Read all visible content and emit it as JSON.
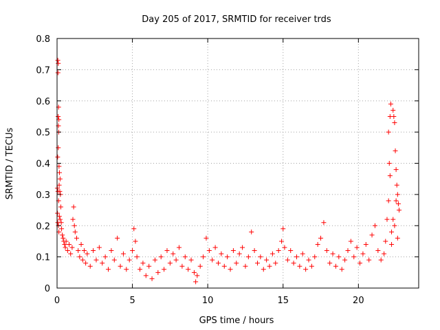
{
  "chart_data": {
    "type": "scatter",
    "title": "Day 205 of 2017, SRMTID for receiver trds",
    "xlabel": "GPS time / hours",
    "ylabel": "SRMTID / TECUs",
    "xlim": [
      0,
      24
    ],
    "ylim": [
      0,
      0.8
    ],
    "xticks": [
      0,
      5,
      10,
      15,
      20
    ],
    "xtick_labels": [
      "0",
      "5",
      "10",
      "15",
      "20"
    ],
    "yticks": [
      0,
      0.1,
      0.2,
      0.3,
      0.4,
      0.5,
      0.6,
      0.7,
      0.8
    ],
    "ytick_labels": [
      "0",
      "0.1",
      "0.2",
      "0.3",
      "0.4",
      "0.5",
      "0.6",
      "0.7",
      "0.8"
    ],
    "grid": true,
    "marker": "+",
    "color": "#ff0000",
    "series": [
      {
        "name": "SRMTID",
        "points": [
          [
            0.05,
            0.73
          ],
          [
            0.08,
            0.72
          ],
          [
            0.06,
            0.69
          ],
          [
            0.1,
            0.58
          ],
          [
            0.07,
            0.55
          ],
          [
            0.12,
            0.54
          ],
          [
            0.09,
            0.52
          ],
          [
            0.11,
            0.5
          ],
          [
            0.08,
            0.45
          ],
          [
            0.04,
            0.42
          ],
          [
            0.13,
            0.39
          ],
          [
            0.16,
            0.37
          ],
          [
            0.2,
            0.35
          ],
          [
            0.14,
            0.33
          ],
          [
            0.02,
            0.32
          ],
          [
            0.06,
            0.31
          ],
          [
            0.18,
            0.31
          ],
          [
            0.22,
            0.3
          ],
          [
            0.1,
            0.28
          ],
          [
            0.25,
            0.26
          ],
          [
            0.03,
            0.24
          ],
          [
            0.15,
            0.23
          ],
          [
            0.2,
            0.22
          ],
          [
            0.28,
            0.21
          ],
          [
            0.05,
            0.21
          ],
          [
            0.09,
            0.2
          ],
          [
            0.3,
            0.19
          ],
          [
            0.12,
            0.18
          ],
          [
            0.35,
            0.17
          ],
          [
            0.4,
            0.16
          ],
          [
            0.45,
            0.15
          ],
          [
            0.5,
            0.14
          ],
          [
            0.55,
            0.13
          ],
          [
            0.6,
            0.15
          ],
          [
            0.7,
            0.12
          ],
          [
            0.8,
            0.14
          ],
          [
            0.9,
            0.11
          ],
          [
            1.0,
            0.13
          ],
          [
            1.1,
            0.26
          ],
          [
            1.05,
            0.22
          ],
          [
            1.15,
            0.2
          ],
          [
            1.2,
            0.18
          ],
          [
            1.3,
            0.16
          ],
          [
            1.4,
            0.12
          ],
          [
            1.5,
            0.1
          ],
          [
            1.6,
            0.14
          ],
          [
            1.7,
            0.09
          ],
          [
            1.8,
            0.12
          ],
          [
            1.9,
            0.08
          ],
          [
            2.0,
            0.11
          ],
          [
            2.2,
            0.07
          ],
          [
            2.4,
            0.12
          ],
          [
            2.6,
            0.09
          ],
          [
            2.8,
            0.13
          ],
          [
            3.0,
            0.08
          ],
          [
            3.2,
            0.1
          ],
          [
            3.4,
            0.06
          ],
          [
            3.6,
            0.12
          ],
          [
            3.8,
            0.09
          ],
          [
            4.0,
            0.16
          ],
          [
            4.2,
            0.07
          ],
          [
            4.4,
            0.11
          ],
          [
            4.6,
            0.06
          ],
          [
            4.8,
            0.09
          ],
          [
            5.0,
            0.12
          ],
          [
            5.1,
            0.19
          ],
          [
            5.2,
            0.15
          ],
          [
            5.3,
            0.1
          ],
          [
            5.5,
            0.06
          ],
          [
            5.7,
            0.08
          ],
          [
            5.9,
            0.04
          ],
          [
            6.1,
            0.07
          ],
          [
            6.3,
            0.03
          ],
          [
            6.5,
            0.09
          ],
          [
            6.7,
            0.05
          ],
          [
            6.9,
            0.1
          ],
          [
            7.1,
            0.06
          ],
          [
            7.3,
            0.12
          ],
          [
            7.5,
            0.08
          ],
          [
            7.7,
            0.11
          ],
          [
            7.9,
            0.09
          ],
          [
            8.1,
            0.13
          ],
          [
            8.3,
            0.07
          ],
          [
            8.5,
            0.1
          ],
          [
            8.7,
            0.06
          ],
          [
            8.9,
            0.09
          ],
          [
            9.1,
            0.05
          ],
          [
            9.2,
            0.02
          ],
          [
            9.3,
            0.04
          ],
          [
            9.5,
            0.07
          ],
          [
            9.7,
            0.1
          ],
          [
            9.9,
            0.16
          ],
          [
            10.1,
            0.12
          ],
          [
            10.3,
            0.09
          ],
          [
            10.5,
            0.13
          ],
          [
            10.7,
            0.08
          ],
          [
            10.9,
            0.11
          ],
          [
            11.1,
            0.07
          ],
          [
            11.3,
            0.1
          ],
          [
            11.5,
            0.06
          ],
          [
            11.7,
            0.12
          ],
          [
            11.9,
            0.08
          ],
          [
            12.1,
            0.11
          ],
          [
            12.3,
            0.13
          ],
          [
            12.5,
            0.07
          ],
          [
            12.7,
            0.1
          ],
          [
            12.9,
            0.18
          ],
          [
            13.1,
            0.12
          ],
          [
            13.3,
            0.08
          ],
          [
            13.5,
            0.1
          ],
          [
            13.7,
            0.06
          ],
          [
            13.9,
            0.09
          ],
          [
            14.1,
            0.07
          ],
          [
            14.3,
            0.11
          ],
          [
            14.5,
            0.08
          ],
          [
            14.7,
            0.12
          ],
          [
            14.9,
            0.15
          ],
          [
            15.0,
            0.19
          ],
          [
            15.1,
            0.13
          ],
          [
            15.3,
            0.09
          ],
          [
            15.5,
            0.12
          ],
          [
            15.7,
            0.08
          ],
          [
            15.9,
            0.1
          ],
          [
            16.1,
            0.07
          ],
          [
            16.3,
            0.11
          ],
          [
            16.5,
            0.06
          ],
          [
            16.7,
            0.09
          ],
          [
            16.9,
            0.07
          ],
          [
            17.1,
            0.1
          ],
          [
            17.3,
            0.14
          ],
          [
            17.5,
            0.16
          ],
          [
            17.7,
            0.21
          ],
          [
            17.9,
            0.12
          ],
          [
            18.1,
            0.08
          ],
          [
            18.3,
            0.11
          ],
          [
            18.5,
            0.07
          ],
          [
            18.7,
            0.1
          ],
          [
            18.9,
            0.06
          ],
          [
            19.1,
            0.09
          ],
          [
            19.3,
            0.12
          ],
          [
            19.5,
            0.15
          ],
          [
            19.7,
            0.1
          ],
          [
            19.9,
            0.13
          ],
          [
            20.1,
            0.08
          ],
          [
            20.3,
            0.11
          ],
          [
            20.5,
            0.14
          ],
          [
            20.7,
            0.09
          ],
          [
            20.9,
            0.17
          ],
          [
            21.1,
            0.2
          ],
          [
            21.3,
            0.12
          ],
          [
            21.5,
            0.09
          ],
          [
            21.7,
            0.11
          ],
          [
            21.8,
            0.15
          ],
          [
            21.9,
            0.22
          ],
          [
            22.0,
            0.28
          ],
          [
            22.05,
            0.4
          ],
          [
            22.1,
            0.36
          ],
          [
            22.0,
            0.5
          ],
          [
            22.1,
            0.55
          ],
          [
            22.15,
            0.59
          ],
          [
            22.3,
            0.57
          ],
          [
            22.35,
            0.55
          ],
          [
            22.4,
            0.53
          ],
          [
            22.45,
            0.44
          ],
          [
            22.5,
            0.38
          ],
          [
            22.55,
            0.33
          ],
          [
            22.6,
            0.3
          ],
          [
            22.65,
            0.27
          ],
          [
            22.7,
            0.25
          ],
          [
            22.4,
            0.2
          ],
          [
            22.2,
            0.18
          ],
          [
            22.3,
            0.22
          ],
          [
            22.5,
            0.28
          ],
          [
            22.6,
            0.16
          ],
          [
            22.2,
            0.14
          ]
        ]
      }
    ]
  }
}
